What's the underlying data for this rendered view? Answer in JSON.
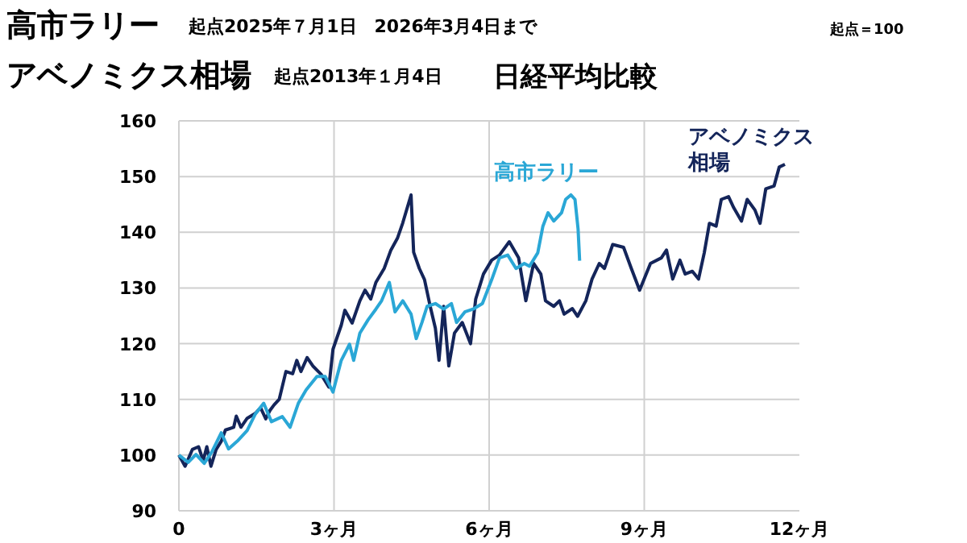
{
  "chart_data": {
    "type": "line",
    "title": "高市ラリー",
    "subtitle": "起点2025年７月1日　2026年3月4日まで",
    "annotations": [
      "アベノミクス相場",
      "起点2013年１月4日",
      "日経平均比較",
      "起点＝100"
    ],
    "xlim": [
      0,
      12
    ],
    "xticks": [
      0,
      {
        "value": 3,
        "label": "3ヶ月"
      },
      {
        "value": 6,
        "label": "6ヶ月"
      },
      {
        "value": 9,
        "label": "9ヶ月"
      },
      {
        "value": 12,
        "label": "12ヶ月"
      }
    ],
    "ylim": [
      90,
      160
    ],
    "yticks": [
      90,
      100,
      110,
      120,
      130,
      140,
      150,
      160
    ],
    "grid": true,
    "series": [
      {
        "name": "アベノミクス相場",
        "color": "#14255a",
        "x": [
          0,
          0.12,
          0.26,
          0.38,
          0.47,
          0.54,
          0.62,
          0.72,
          0.82,
          0.9,
          1.06,
          1.11,
          1.2,
          1.32,
          1.48,
          1.58,
          1.68,
          1.76,
          1.84,
          1.94,
          2.07,
          2.2,
          2.28,
          2.36,
          2.48,
          2.59,
          2.75,
          2.9,
          2.98,
          3.14,
          3.21,
          3.35,
          3.5,
          3.6,
          3.71,
          3.81,
          3.97,
          4.1,
          4.23,
          4.33,
          4.49,
          4.54,
          4.65,
          4.75,
          4.86,
          4.96,
          5.03,
          5.12,
          5.22,
          5.33,
          5.48,
          5.64,
          5.74,
          5.89,
          6.05,
          6.2,
          6.39,
          6.57,
          6.71,
          6.86,
          7.0,
          7.09,
          7.25,
          7.36,
          7.45,
          7.61,
          7.71,
          7.87,
          7.99,
          8.13,
          8.23,
          8.39,
          8.6,
          8.75,
          8.91,
          9.12,
          9.33,
          9.43,
          9.55,
          9.69,
          9.79,
          9.93,
          10.05,
          10.16,
          10.26,
          10.39,
          10.49,
          10.63,
          10.73,
          10.88,
          10.99,
          11.14,
          11.24,
          11.35,
          11.51,
          11.61,
          11.72
        ],
        "values": [
          100,
          98,
          101,
          101.5,
          99,
          101.5,
          98,
          101,
          102.5,
          104.5,
          105,
          107,
          105,
          106.6,
          107.5,
          108.5,
          106.5,
          108,
          109,
          110,
          115,
          114.6,
          117,
          115,
          117.5,
          116,
          114.5,
          112.2,
          119,
          123.3,
          126,
          123.7,
          127.7,
          129.6,
          128,
          131,
          133.5,
          136.8,
          139,
          141.7,
          146.7,
          136.4,
          133.5,
          131.5,
          126.7,
          122.8,
          117,
          126.7,
          116,
          121.9,
          123.8,
          120,
          128,
          132.5,
          135,
          135.9,
          138.3,
          135.4,
          127.7,
          134.4,
          132.5,
          127.7,
          126.7,
          127.7,
          125.3,
          126.3,
          124.9,
          127.7,
          131.6,
          134.4,
          133.5,
          137.8,
          137.3,
          133.5,
          129.6,
          134.4,
          135.4,
          136.8,
          131.6,
          135,
          132.5,
          133,
          131.6,
          136.3,
          141.6,
          141.1,
          145.9,
          146.4,
          144.4,
          142,
          145.9,
          144,
          141.6,
          147.8,
          148.3,
          151.7,
          152.2
        ]
      },
      {
        "name": "高市ラリー",
        "color": "#2aa7d6",
        "x": [
          0,
          0.18,
          0.33,
          0.49,
          0.64,
          0.82,
          0.96,
          1.13,
          1.32,
          1.48,
          1.64,
          1.79,
          2.0,
          2.15,
          2.31,
          2.46,
          2.67,
          2.83,
          2.98,
          3.14,
          3.3,
          3.38,
          3.5,
          3.66,
          3.81,
          3.92,
          4.07,
          4.18,
          4.33,
          4.49,
          4.59,
          4.7,
          4.8,
          4.96,
          5.12,
          5.27,
          5.37,
          5.53,
          5.69,
          5.87,
          6.05,
          6.2,
          6.36,
          6.52,
          6.68,
          6.78,
          6.94,
          7.04,
          7.14,
          7.25,
          7.4,
          7.48,
          7.58,
          7.66,
          7.72,
          7.75
        ],
        "values": [
          100,
          98.7,
          100.1,
          98.5,
          100.6,
          104,
          101.1,
          102.5,
          104.4,
          107.4,
          109.3,
          106,
          106.9,
          105,
          109.3,
          111.7,
          114.1,
          114.1,
          111.3,
          117,
          119.9,
          117,
          121.9,
          124.3,
          126.2,
          127.7,
          131,
          125.7,
          127.7,
          125.3,
          120.9,
          123.8,
          126.7,
          127.2,
          126.2,
          127.2,
          123.8,
          125.7,
          126.2,
          127.2,
          131.5,
          135.4,
          135.9,
          133.5,
          134.4,
          133.9,
          136.3,
          141.1,
          143.5,
          142,
          143.5,
          145.9,
          146.7,
          145.9,
          140.6,
          134.9
        ]
      }
    ]
  }
}
